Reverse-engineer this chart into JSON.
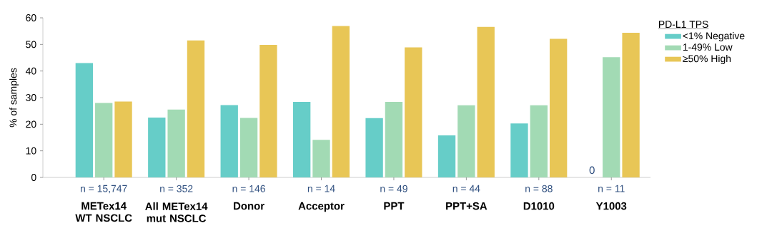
{
  "chart_data": {
    "type": "bar",
    "ylabel": "% of samples",
    "legend_title": "PD-L1 TPS",
    "legend": "top right",
    "grid": false,
    "categories": [
      "METex14 WT NSCLC",
      "All METex14 mut NSCLC",
      "Donor",
      "Acceptor",
      "PPT",
      "PPT+SA",
      "D1010",
      "Y1003"
    ],
    "series": [
      {
        "name": "<1%   Negative",
        "color": "#66cdc8",
        "values": [
          43,
          22.5,
          27.2,
          28.4,
          22.3,
          15.8,
          20.3,
          0
        ]
      },
      {
        "name": "1-49%   Low",
        "color": "#a2dab4",
        "values": [
          28,
          25.5,
          22.4,
          14.1,
          28.4,
          27.1,
          27.1,
          45.2
        ]
      },
      {
        "name": "≥50%   High",
        "color": "#e8c656",
        "values": [
          28.5,
          51.5,
          49.8,
          56.9,
          48.9,
          56.6,
          52.1,
          54.4
        ]
      }
    ],
    "ylim": [
      0,
      60
    ],
    "yticks": [
      0,
      10,
      20,
      30,
      40,
      50,
      60
    ],
    "annotations": [
      "n = 15,747",
      "n = 352",
      "n = 146",
      "n = 14",
      "n = 49",
      "n = 44",
      "n = 88",
      "n = 11",
      {
        "text": "0",
        "x": "Y1003",
        "y": 0
      }
    ]
  }
}
